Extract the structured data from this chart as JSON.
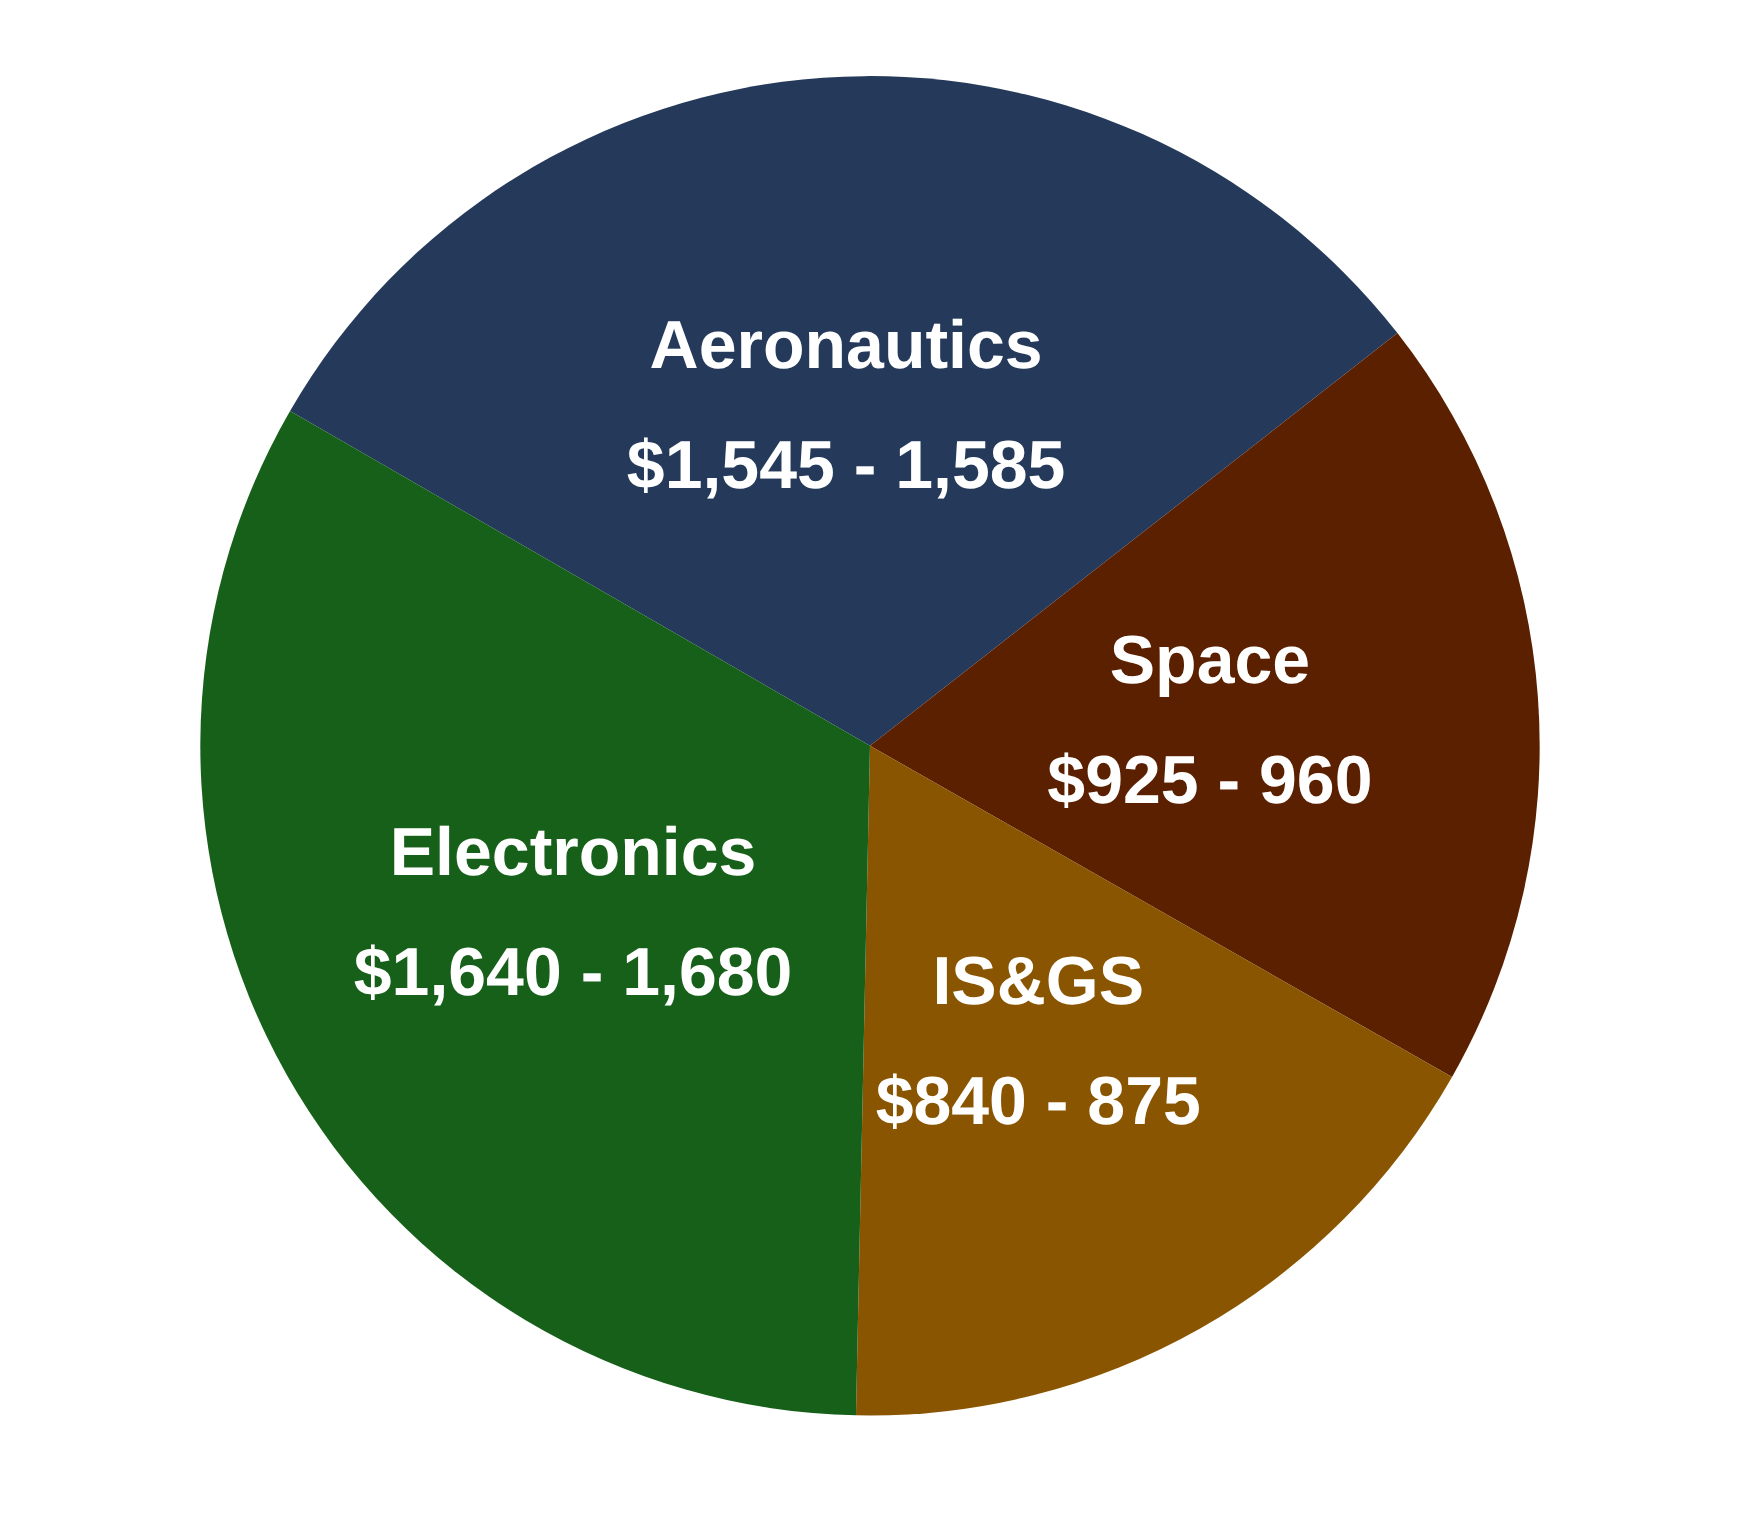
{
  "chart_data": {
    "type": "pie",
    "categories": [
      "Aeronautics",
      "Space",
      "IS&GS",
      "Electronics"
    ],
    "values": [
      31.1,
      18.8,
      17.1,
      33.0
    ],
    "colors": [
      "#253a5a",
      "#5a2000",
      "#8a5500",
      "#17601a"
    ],
    "annotations": [
      "$1,545 - 1,585",
      "$925 - 960",
      "$840 - 875",
      "$1,640 - 1,680"
    ],
    "legend": false
  }
}
